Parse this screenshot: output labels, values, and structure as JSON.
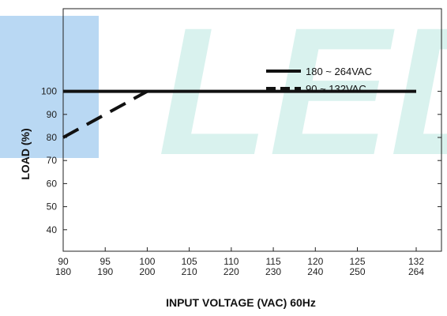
{
  "chart_data": {
    "type": "line",
    "ylabel": "LOAD (%)",
    "xlabel": "INPUT VOLTAGE (VAC) 60Hz",
    "ylim": [
      30,
      105
    ],
    "xlim": [
      90,
      135
    ],
    "y_ticks": [
      40,
      50,
      60,
      70,
      80,
      90,
      100
    ],
    "x_ticks": [
      {
        "value": 90,
        "top": "90",
        "bottom": "180"
      },
      {
        "value": 95,
        "top": "95",
        "bottom": "190"
      },
      {
        "value": 100,
        "top": "100",
        "bottom": "200"
      },
      {
        "value": 105,
        "top": "105",
        "bottom": "210"
      },
      {
        "value": 110,
        "top": "110",
        "bottom": "220"
      },
      {
        "value": 115,
        "top": "115",
        "bottom": "230"
      },
      {
        "value": 120,
        "top": "120",
        "bottom": "240"
      },
      {
        "value": 125,
        "top": "125",
        "bottom": "250"
      },
      {
        "value": 132,
        "top": "132",
        "bottom": "264"
      }
    ],
    "grid": false,
    "legend_position": "right-middle",
    "series": [
      {
        "name": "180 ~ 264VAC",
        "style": "solid",
        "color": "#111111",
        "x": [
          90,
          132
        ],
        "y": [
          100,
          100
        ]
      },
      {
        "name": "90 ~ 132VAC",
        "style": "dashed",
        "color": "#111111",
        "x": [
          90,
          100
        ],
        "y": [
          80,
          100
        ]
      }
    ]
  },
  "watermark": {
    "colors": [
      "#7fb8ea",
      "#cdeee9"
    ]
  }
}
